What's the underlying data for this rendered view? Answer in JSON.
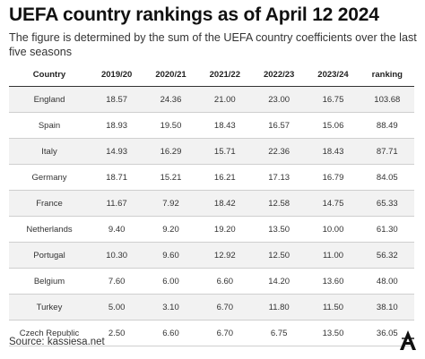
{
  "title": "UEFA country rankings as of April 12 2024",
  "subtitle": "The figure is determined by the sum of the UEFA country coefficients over the last five seasons",
  "source": "Source: kassiesa.net",
  "chart_data": {
    "type": "table",
    "columns": [
      "Country",
      "2019/20",
      "2020/21",
      "2021/22",
      "2022/23",
      "2023/24",
      "ranking"
    ],
    "rows": [
      [
        "England",
        "18.57",
        "24.36",
        "21.00",
        "23.00",
        "16.75",
        "103.68"
      ],
      [
        "Spain",
        "18.93",
        "19.50",
        "18.43",
        "16.57",
        "15.06",
        "88.49"
      ],
      [
        "Italy",
        "14.93",
        "16.29",
        "15.71",
        "22.36",
        "18.43",
        "87.71"
      ],
      [
        "Germany",
        "18.71",
        "15.21",
        "16.21",
        "17.13",
        "16.79",
        "84.05"
      ],
      [
        "France",
        "11.67",
        "7.92",
        "18.42",
        "12.58",
        "14.75",
        "65.33"
      ],
      [
        "Netherlands",
        "9.40",
        "9.20",
        "19.20",
        "13.50",
        "10.00",
        "61.30"
      ],
      [
        "Portugal",
        "10.30",
        "9.60",
        "12.92",
        "12.50",
        "11.00",
        "56.32"
      ],
      [
        "Belgium",
        "7.60",
        "6.00",
        "6.60",
        "14.20",
        "13.60",
        "48.00"
      ],
      [
        "Turkey",
        "5.00",
        "3.10",
        "6.70",
        "11.80",
        "11.50",
        "38.10"
      ],
      [
        "Czech Republic",
        "2.50",
        "6.60",
        "6.70",
        "6.75",
        "13.50",
        "36.05"
      ]
    ]
  },
  "logo_icon": "athletic-logo-icon"
}
